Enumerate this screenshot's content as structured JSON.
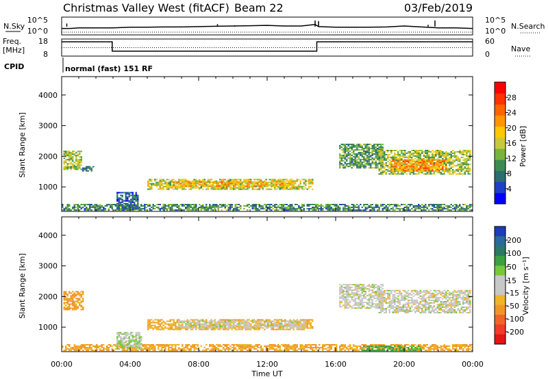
{
  "header": {
    "station": "Christmas Valley West (fitACF)",
    "beam": "Beam 22",
    "date": "03/Feb/2019"
  },
  "noise_panel": {
    "left_label": "N.Sky",
    "right_label": "N.Search",
    "left_ticks": [
      "10^5",
      "10^0"
    ],
    "right_ticks": [
      "10^5",
      "10^0"
    ]
  },
  "freq_panel": {
    "left_label_1": "Freq.",
    "left_label_2": "[MHz]",
    "right_label": "Nave",
    "left_ticks": [
      "18",
      "8"
    ],
    "right_ticks": [
      "60",
      "0"
    ]
  },
  "cpid": {
    "label": "CPID",
    "value": "normal (fast) 151 RF"
  },
  "time_axis": {
    "ticks": [
      "00:00",
      "04:00",
      "08:00",
      "12:00",
      "16:00",
      "20:00",
      "00:00"
    ],
    "label": "Time UT"
  },
  "range_axis": {
    "ticks": [
      "1000",
      "2000",
      "3000",
      "4000"
    ],
    "label": "Slant Range [km]"
  },
  "power_colorbar": {
    "label": "Power [dB]",
    "ticks": [
      "4",
      "8",
      "12",
      "16",
      "20",
      "24",
      "28"
    ],
    "colors": [
      "#0000ff",
      "#1e40c8",
      "#2a6e6e",
      "#3c8c50",
      "#78b43c",
      "#c8c83c",
      "#ffc800",
      "#ff9600",
      "#ff6400",
      "#ff3200",
      "#ff0000"
    ]
  },
  "velocity_colorbar": {
    "label": "Velocity [m s⁻¹]",
    "ticks": [
      "200",
      "100",
      "50",
      "15",
      "-15",
      "-50",
      "-100",
      "-200"
    ],
    "colors": [
      "#1e3cb4",
      "#2a6a9a",
      "#2a7a64",
      "#3ca040",
      "#78c83c",
      "#c8c8c8",
      "#c8c8c8",
      "#f0b428",
      "#f09628",
      "#f06428",
      "#f03c28",
      "#e61414"
    ]
  },
  "chart_data": {
    "type": "heatmap",
    "x_unit": "UT hours",
    "xlim": [
      0,
      24
    ],
    "ylim": [
      200,
      4600
    ],
    "noise": {
      "x": [
        0,
        0.5,
        1,
        2,
        3,
        4,
        5,
        6,
        7,
        8,
        9,
        10,
        11,
        12,
        13,
        14,
        14.8,
        15,
        16,
        17,
        18,
        19,
        20,
        21,
        22,
        23,
        24
      ],
      "sky": [
        0.3,
        0.3,
        0.35,
        0.35,
        0.35,
        0.4,
        0.4,
        0.42,
        0.42,
        0.45,
        0.48,
        0.5,
        0.52,
        0.55,
        0.5,
        0.5,
        0.62,
        0.45,
        0.4,
        0.4,
        0.4,
        0.42,
        0.5,
        0.42,
        0.35,
        0.35,
        0.3
      ],
      "spikes_x": [
        0.3,
        9.1,
        10.1,
        14.8,
        15.0,
        21.4,
        21.8
      ],
      "spikes_y": [
        0.7,
        0.65,
        0.55,
        0.95,
        0.9,
        0.6,
        0.95
      ]
    },
    "frequency": {
      "x": [
        0,
        2.95,
        2.95,
        14.9,
        14.9,
        24
      ],
      "mhz": [
        17,
        17,
        10.5,
        10.5,
        17,
        17
      ]
    },
    "nave_level": 0.55,
    "power_regions": [
      {
        "t0": 0.1,
        "t1": 1.2,
        "r0": 1550,
        "r1": 2150,
        "val": 14
      },
      {
        "t0": 1.2,
        "t1": 1.9,
        "r0": 1500,
        "r1": 1650,
        "val": 8
      },
      {
        "t0": 5.0,
        "t1": 14.6,
        "r0": 900,
        "r1": 1250,
        "val": 16
      },
      {
        "t0": 6.5,
        "t1": 13.5,
        "r0": 1000,
        "r1": 1150,
        "val": 20
      },
      {
        "t0": 16.2,
        "t1": 18.8,
        "r0": 1600,
        "r1": 2400,
        "val": 11
      },
      {
        "t0": 18.5,
        "t1": 23.9,
        "r0": 1400,
        "r1": 2200,
        "val": 15
      },
      {
        "t0": 19.2,
        "t1": 22.5,
        "r0": 1500,
        "r1": 1900,
        "val": 22
      },
      {
        "t0": 0.0,
        "t1": 24.0,
        "r0": 220,
        "r1": 420,
        "val": 10
      },
      {
        "t0": 3.2,
        "t1": 4.4,
        "r0": 250,
        "r1": 800,
        "val": 7
      }
    ],
    "velocity_regions": [
      {
        "t0": 0.1,
        "t1": 1.3,
        "r0": 1550,
        "r1": 2150,
        "val": -60
      },
      {
        "t0": 5.0,
        "t1": 14.6,
        "r0": 900,
        "r1": 1250,
        "val": -40
      },
      {
        "t0": 6.8,
        "t1": 14.2,
        "r0": 950,
        "r1": 1200,
        "val": 0
      },
      {
        "t0": 16.2,
        "t1": 18.8,
        "r0": 1600,
        "r1": 2400,
        "val": 0
      },
      {
        "t0": 18.5,
        "t1": 23.9,
        "r0": 1450,
        "r1": 2200,
        "val": 0
      },
      {
        "t0": 0.0,
        "t1": 24.0,
        "r0": 220,
        "r1": 420,
        "val": -50
      },
      {
        "t0": 3.2,
        "t1": 4.6,
        "r0": 300,
        "r1": 800,
        "val": 10
      },
      {
        "t0": 17.5,
        "t1": 21.0,
        "r0": 220,
        "r1": 380,
        "val": 40
      }
    ]
  }
}
